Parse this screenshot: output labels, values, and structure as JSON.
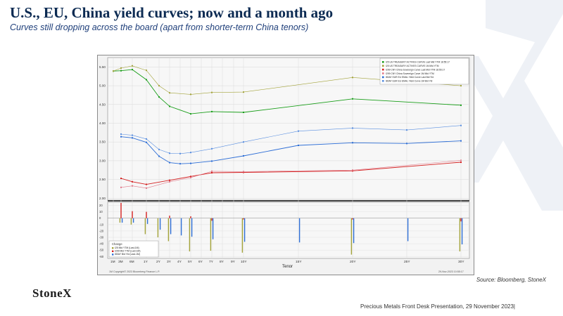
{
  "slide": {
    "title": "U.S., EU, China yield curves; now and a month ago",
    "subtitle": "Curves still dropping across the board (apart from shorter-term China tenors)",
    "source": "Source: Bloomberg, StoneX",
    "logo": "StoneX",
    "footer": "Precious Metals Front Desk Presentation, 29 November 2023|"
  },
  "chart_data": {
    "type": "line",
    "xlabel": "Tenor",
    "x_ticks": [
      "1M",
      "3M",
      "6M",
      "1Y",
      "2Y",
      "3Y",
      "4Y",
      "5Y",
      "6Y",
      "7Y",
      "8Y",
      "9Y",
      "10Y",
      "15Y",
      "20Y",
      "25Y",
      "30Y"
    ],
    "x_tick_years": [
      0.0833,
      0.25,
      0.5,
      1,
      2,
      3,
      4,
      5,
      6,
      7,
      8,
      9,
      10,
      15,
      20,
      25,
      30
    ],
    "y_ticks": [
      "2.00",
      "2.50",
      "3.00",
      "3.50",
      "4.00",
      "4.50",
      "5.00",
      "5.50"
    ],
    "ylim": [
      1.95,
      5.75
    ],
    "legend_position": "top-right",
    "legend": [
      {
        "label": "I25 US TREASURY ACTIVES CURVE Last Mid YTM 18:55:17",
        "color": "#1a9e1a"
      },
      {
        "label": "I25 US TREASURY ACTIVES CURVE 1M Mid YTM",
        "color": "#a3a33a"
      },
      {
        "label": "I299 CNY China Sovereign Curve Last Mid YTM 18:55:17",
        "color": "#d42020"
      },
      {
        "label": "I299 CNY China Sovereign Curve 1M Mid YTM",
        "color": "#e07a8a"
      },
      {
        "label": "I80AY EUR EU EMAL Yield Curve Last Bid Yld",
        "color": "#2f6fd6"
      },
      {
        "label": "I80AY EUR EU EMAL Yield Curve 1M Bid Yld",
        "color": "#5a8fe0"
      }
    ],
    "series": [
      {
        "color": "#1a9e1a",
        "x": [
          0.0833,
          0.25,
          0.5,
          1,
          2,
          3,
          5,
          7,
          10,
          20,
          30
        ],
        "values": [
          5.39,
          5.4,
          5.43,
          5.16,
          4.7,
          4.45,
          4.25,
          4.31,
          4.29,
          4.65,
          4.48
        ]
      },
      {
        "color": "#a3a33a",
        "x": [
          0.0833,
          0.25,
          0.5,
          1,
          2,
          3,
          5,
          7,
          10,
          20,
          30
        ],
        "values": [
          5.39,
          5.47,
          5.53,
          5.41,
          5.0,
          4.81,
          4.77,
          4.82,
          4.83,
          5.22,
          5.0
        ]
      },
      {
        "color": "#d42020",
        "x": [
          0.25,
          0.5,
          1,
          3,
          5,
          7,
          10,
          20,
          30
        ],
        "values": [
          2.53,
          2.44,
          2.37,
          2.48,
          2.58,
          2.68,
          2.69,
          2.73,
          2.96
        ]
      },
      {
        "color": "#e07a8a",
        "x": [
          0.25,
          0.5,
          1,
          3,
          5,
          7,
          10,
          20,
          30
        ],
        "values": [
          2.29,
          2.33,
          2.27,
          2.44,
          2.55,
          2.72,
          2.71,
          2.75,
          3.01
        ]
      },
      {
        "color": "#2f6fd6",
        "x": [
          0.25,
          0.5,
          1,
          2,
          3,
          4,
          5,
          7,
          10,
          15,
          20,
          25,
          30
        ],
        "values": [
          3.64,
          3.61,
          3.49,
          3.12,
          2.95,
          2.92,
          2.93,
          2.99,
          3.13,
          3.41,
          3.48,
          3.46,
          3.53
        ]
      },
      {
        "color": "#5a8fe0",
        "x": [
          0.25,
          0.5,
          1,
          2,
          3,
          4,
          5,
          7,
          10,
          15,
          20,
          25,
          30
        ],
        "values": [
          3.71,
          3.68,
          3.58,
          3.3,
          3.2,
          3.19,
          3.22,
          3.32,
          3.5,
          3.79,
          3.87,
          3.82,
          3.94
        ]
      }
    ],
    "change_panel": {
      "title": "Change",
      "legend": [
        {
          "label": "I25 Mid YTM (Last-1M)",
          "color": "#a3a33a"
        },
        {
          "label": "I299 Mid YTM (Last-1M)",
          "color": "#d42020"
        },
        {
          "label": "I80AY Bid Yld (Last-1M)",
          "color": "#2f6fd6"
        }
      ],
      "y_ticks": [
        "20",
        "10",
        "0",
        "-10",
        "-20",
        "-30",
        "-40",
        "-50",
        "-60"
      ],
      "ylim": [
        -63,
        25
      ],
      "bars": [
        {
          "x": 0.0833,
          "us": 0,
          "cn": 0,
          "eu": 0
        },
        {
          "x": 0.25,
          "us": -7,
          "cn": 24,
          "eu": -7
        },
        {
          "x": 0.5,
          "us": -10,
          "cn": 11,
          "eu": -7
        },
        {
          "x": 1,
          "us": -25,
          "cn": 10,
          "eu": -9
        },
        {
          "x": 2,
          "us": -30,
          "cn": 0,
          "eu": -18
        },
        {
          "x": 3,
          "us": -36,
          "cn": 4,
          "eu": -25
        },
        {
          "x": 4,
          "us": 0,
          "cn": 0,
          "eu": -27
        },
        {
          "x": 5,
          "us": -52,
          "cn": 3,
          "eu": -29
        },
        {
          "x": 7,
          "us": -51,
          "cn": -4,
          "eu": -33
        },
        {
          "x": 10,
          "us": -54,
          "cn": -2,
          "eu": -37
        },
        {
          "x": 15,
          "us": 0,
          "cn": 0,
          "eu": -38
        },
        {
          "x": 20,
          "us": -57,
          "cn": -2,
          "eu": -39
        },
        {
          "x": 25,
          "us": 0,
          "cn": 0,
          "eu": -36
        },
        {
          "x": 30,
          "us": -52,
          "cn": -5,
          "eu": -41
        }
      ]
    },
    "footer_left": "1M Copyright© 2023 Bloomberg Finance L.P.",
    "footer_right": "29-Nov-2023 10:55:17"
  }
}
